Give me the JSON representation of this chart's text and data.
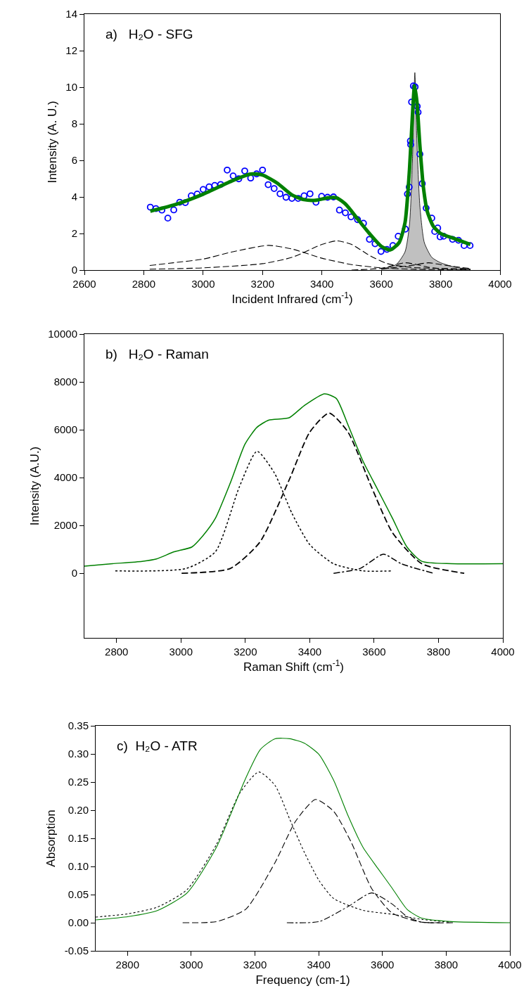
{
  "chart_data": [
    {
      "type": "line",
      "title": "a)   H₂O - SFG",
      "xlabel": "Incident Infrared (cm$^{-1}$)",
      "ylabel": "Intensity (A. U.)",
      "xlim": [
        2600,
        4000
      ],
      "ylim": [
        0,
        14
      ],
      "xticks": [
        2600,
        2800,
        3000,
        3200,
        3400,
        3600,
        3800,
        4000
      ],
      "yticks": [
        0,
        2,
        4,
        6,
        8,
        10,
        12,
        14
      ],
      "series": [
        {
          "type": "area",
          "color": "#c0c0c0",
          "x": [
            3600,
            3650,
            3680,
            3695,
            3705,
            3713,
            3720,
            3730,
            3745,
            3770,
            3800,
            3850,
            3900
          ],
          "values": [
            0.05,
            0.3,
            1.0,
            2.5,
            6,
            10.8,
            7,
            3.5,
            1.5,
            0.7,
            0.4,
            0.15,
            0.05
          ]
        },
        {
          "color": "#000000",
          "marker": "none",
          "line_style": "dashed",
          "x": [
            2820,
            2900,
            3000,
            3100,
            3220,
            3300,
            3400,
            3500,
            3600,
            3700,
            3900
          ],
          "values": [
            0.25,
            0.4,
            0.6,
            1.0,
            1.35,
            1.15,
            0.65,
            0.3,
            0.12,
            0.05,
            0.0
          ]
        },
        {
          "color": "#000000",
          "marker": "none",
          "line_style": "dashed",
          "x": [
            2820,
            3000,
            3200,
            3300,
            3400,
            3450,
            3500,
            3560,
            3620,
            3700,
            3900
          ],
          "values": [
            0.05,
            0.12,
            0.35,
            0.7,
            1.4,
            1.6,
            1.4,
            0.8,
            0.35,
            0.15,
            0.05
          ]
        },
        {
          "color": "#000000",
          "marker": "none",
          "line_style": "dashed",
          "x": [
            3500,
            3600,
            3680,
            3720,
            3760,
            3800,
            3900
          ],
          "values": [
            0.0,
            0.1,
            0.4,
            0.3,
            0.15,
            0.08,
            0.02
          ]
        },
        {
          "color": "#000000",
          "marker": "none",
          "line_style": "dashed",
          "x": [
            3600,
            3700,
            3760,
            3800,
            3900
          ],
          "values": [
            0.05,
            0.25,
            0.4,
            0.3,
            0.08
          ]
        },
        {
          "type": "scatter",
          "color": "#0000ff",
          "marker": "circle",
          "x": [
            2822,
            2841,
            2861,
            2881,
            2901,
            2921,
            2940,
            2960,
            2980,
            3000,
            3020,
            3039,
            3059,
            3081,
            3101,
            3120,
            3140,
            3160,
            3180,
            3200,
            3219,
            3239,
            3259,
            3279,
            3299,
            3320,
            3340,
            3360,
            3380,
            3399,
            3419,
            3439,
            3459,
            3479,
            3498,
            3520,
            3540,
            3560,
            3579,
            3599,
            3619,
            3639,
            3657,
            3681,
            3688,
            3694,
            3698,
            3699,
            3702,
            3708,
            3714,
            3721,
            3724,
            3730,
            3738,
            3751,
            3770,
            3780,
            3790,
            3798,
            3810,
            3840,
            3860,
            3879,
            3899
          ],
          "values": [
            3.44,
            3.36,
            3.28,
            2.84,
            3.29,
            3.71,
            3.69,
            4.06,
            4.16,
            4.41,
            4.55,
            4.63,
            4.68,
            5.47,
            5.15,
            4.99,
            5.42,
            5.03,
            5.26,
            5.47,
            4.67,
            4.46,
            4.17,
            3.98,
            3.92,
            3.92,
            4.06,
            4.17,
            3.71,
            4.03,
            3.98,
            4.0,
            3.28,
            3.13,
            2.91,
            2.76,
            2.56,
            1.68,
            1.44,
            1.02,
            1.13,
            1.34,
            1.85,
            2.24,
            4.16,
            4.54,
            7.06,
            6.86,
            9.19,
            10.07,
            10.02,
            8.95,
            8.63,
            6.34,
            4.73,
            3.39,
            2.84,
            2.11,
            2.3,
            1.82,
            1.85,
            1.68,
            1.63,
            1.34,
            1.34
          ]
        },
        {
          "color": "#008000",
          "marker": "none",
          "line_style": "solid",
          "x": [
            2822,
            2900,
            3000,
            3100,
            3160,
            3200,
            3250,
            3300,
            3340,
            3380,
            3420,
            3450,
            3480,
            3520,
            3560,
            3600,
            3630,
            3660,
            3680,
            3695,
            3705,
            3712,
            3720,
            3730,
            3742,
            3755,
            3775,
            3800,
            3850,
            3900
          ],
          "values": [
            3.22,
            3.55,
            4.15,
            4.9,
            5.25,
            5.2,
            4.75,
            4.1,
            3.85,
            3.82,
            3.95,
            3.95,
            3.6,
            2.8,
            2.0,
            1.3,
            1.1,
            1.5,
            2.6,
            5.5,
            8.5,
            10.1,
            9.2,
            6.8,
            4.5,
            3.2,
            2.4,
            2.0,
            1.7,
            1.4
          ]
        }
      ]
    },
    {
      "type": "line",
      "title": "b)   H₂O - Raman",
      "xlabel": "Raman Shift (cm$^{-1}$)",
      "ylabel": "Intensity (A.U.)",
      "xlim": [
        2700,
        4000
      ],
      "ylim": [
        -2700,
        10000
      ],
      "xticks": [
        2800,
        3000,
        3200,
        3400,
        3600,
        3800,
        4000
      ],
      "yticks": [
        0,
        2000,
        4000,
        6000,
        8000,
        10000
      ],
      "series": [
        {
          "color": "#000000",
          "marker": "none",
          "line_style": "dotted",
          "x": [
            2796,
            3016,
            3107,
            3181,
            3236,
            3290,
            3345,
            3400,
            3474,
            3565,
            3657
          ],
          "values": [
            100,
            200,
            900,
            3600,
            5100,
            4200,
            2500,
            1200,
            400,
            100,
            100
          ]
        },
        {
          "color": "#000000",
          "marker": "none",
          "line_style": "dashed",
          "x": [
            3002,
            3153,
            3245,
            3336,
            3400,
            3460,
            3519,
            3592,
            3657,
            3748,
            3880
          ],
          "values": [
            0,
            200,
            1300,
            3900,
            5900,
            6700,
            5900,
            3600,
            1700,
            400,
            0
          ]
        },
        {
          "color": "#000000",
          "marker": "none",
          "line_style": "dashdot",
          "x": [
            3474,
            3556,
            3629,
            3684,
            3785
          ],
          "values": [
            0,
            200,
            800,
            400,
            0
          ]
        },
        {
          "color": "#008000",
          "marker": "none",
          "line_style": "solid",
          "x": [
            2700,
            2787,
            2879,
            2924,
            2979,
            3034,
            3070,
            3107,
            3154,
            3199,
            3236,
            3272,
            3336,
            3382,
            3446,
            3483,
            3519,
            3565,
            3611,
            3657,
            3702,
            3748,
            3840,
            4000
          ],
          "values": [
            300,
            400,
            500,
            600,
            900,
            1100,
            1600,
            2300,
            3800,
            5400,
            6100,
            6400,
            6500,
            7000,
            7500,
            7300,
            6200,
            4700,
            3500,
            2300,
            1100,
            500,
            400,
            400
          ]
        }
      ]
    },
    {
      "type": "line",
      "title": "c)  H₂O - ATR",
      "xlabel": "Frequency (cm-1)",
      "ylabel": "Absorption",
      "xlim": [
        2700,
        4000
      ],
      "ylim": [
        -0.05,
        0.35
      ],
      "xticks": [
        2800,
        3000,
        3200,
        3400,
        3600,
        3800,
        4000
      ],
      "yticks": [
        {
          "value": -0.05,
          "label": "-0.05"
        },
        {
          "value": 0,
          "label": "0.00"
        },
        {
          "value": 0.05,
          "label": "0.05"
        },
        {
          "value": 0.1,
          "label": "0.10"
        },
        {
          "value": 0.15,
          "label": "0.15"
        },
        {
          "value": 0.2,
          "label": "0.20"
        },
        {
          "value": 0.25,
          "label": "0.25"
        },
        {
          "value": 0.3,
          "label": "0.30"
        },
        {
          "value": 0.35,
          "label": "0.35"
        }
      ],
      "series": [
        {
          "color": "#000000",
          "marker": "none",
          "line_style": "dotted",
          "x": [
            2700,
            2803,
            2895,
            2987,
            3079,
            3152,
            3212,
            3263,
            3309,
            3355,
            3401,
            3447,
            3539,
            3631,
            3723,
            3815
          ],
          "values": [
            0.01,
            0.016,
            0.028,
            0.059,
            0.139,
            0.23,
            0.268,
            0.244,
            0.184,
            0.125,
            0.075,
            0.043,
            0.022,
            0.015,
            0.006,
            0.001
          ]
        },
        {
          "color": "#000000",
          "marker": "none",
          "line_style": "dashed",
          "x": [
            2973,
            3079,
            3171,
            3263,
            3327,
            3390,
            3447,
            3502,
            3566,
            3631,
            3723,
            3824
          ],
          "values": [
            0,
            0.002,
            0.024,
            0.107,
            0.18,
            0.219,
            0.198,
            0.143,
            0.061,
            0.017,
            0.001,
            0
          ]
        },
        {
          "color": "#000000",
          "marker": "none",
          "line_style": "dashdot",
          "x": [
            3300,
            3401,
            3493,
            3566,
            3631,
            3677,
            3723,
            3780
          ],
          "values": [
            0,
            0.002,
            0.029,
            0.053,
            0.033,
            0.011,
            0.001,
            0
          ]
        },
        {
          "color": "#008000",
          "marker": "none",
          "line_style": "solid",
          "x": [
            2700,
            2803,
            2895,
            2987,
            3079,
            3171,
            3217,
            3263,
            3309,
            3355,
            3401,
            3447,
            3493,
            3539,
            3585,
            3631,
            3677,
            3723,
            3815,
            4000
          ],
          "values": [
            0.005,
            0.011,
            0.022,
            0.053,
            0.134,
            0.257,
            0.308,
            0.327,
            0.327,
            0.319,
            0.299,
            0.253,
            0.189,
            0.134,
            0.097,
            0.061,
            0.024,
            0.008,
            0.002,
            0.0
          ]
        }
      ]
    }
  ]
}
